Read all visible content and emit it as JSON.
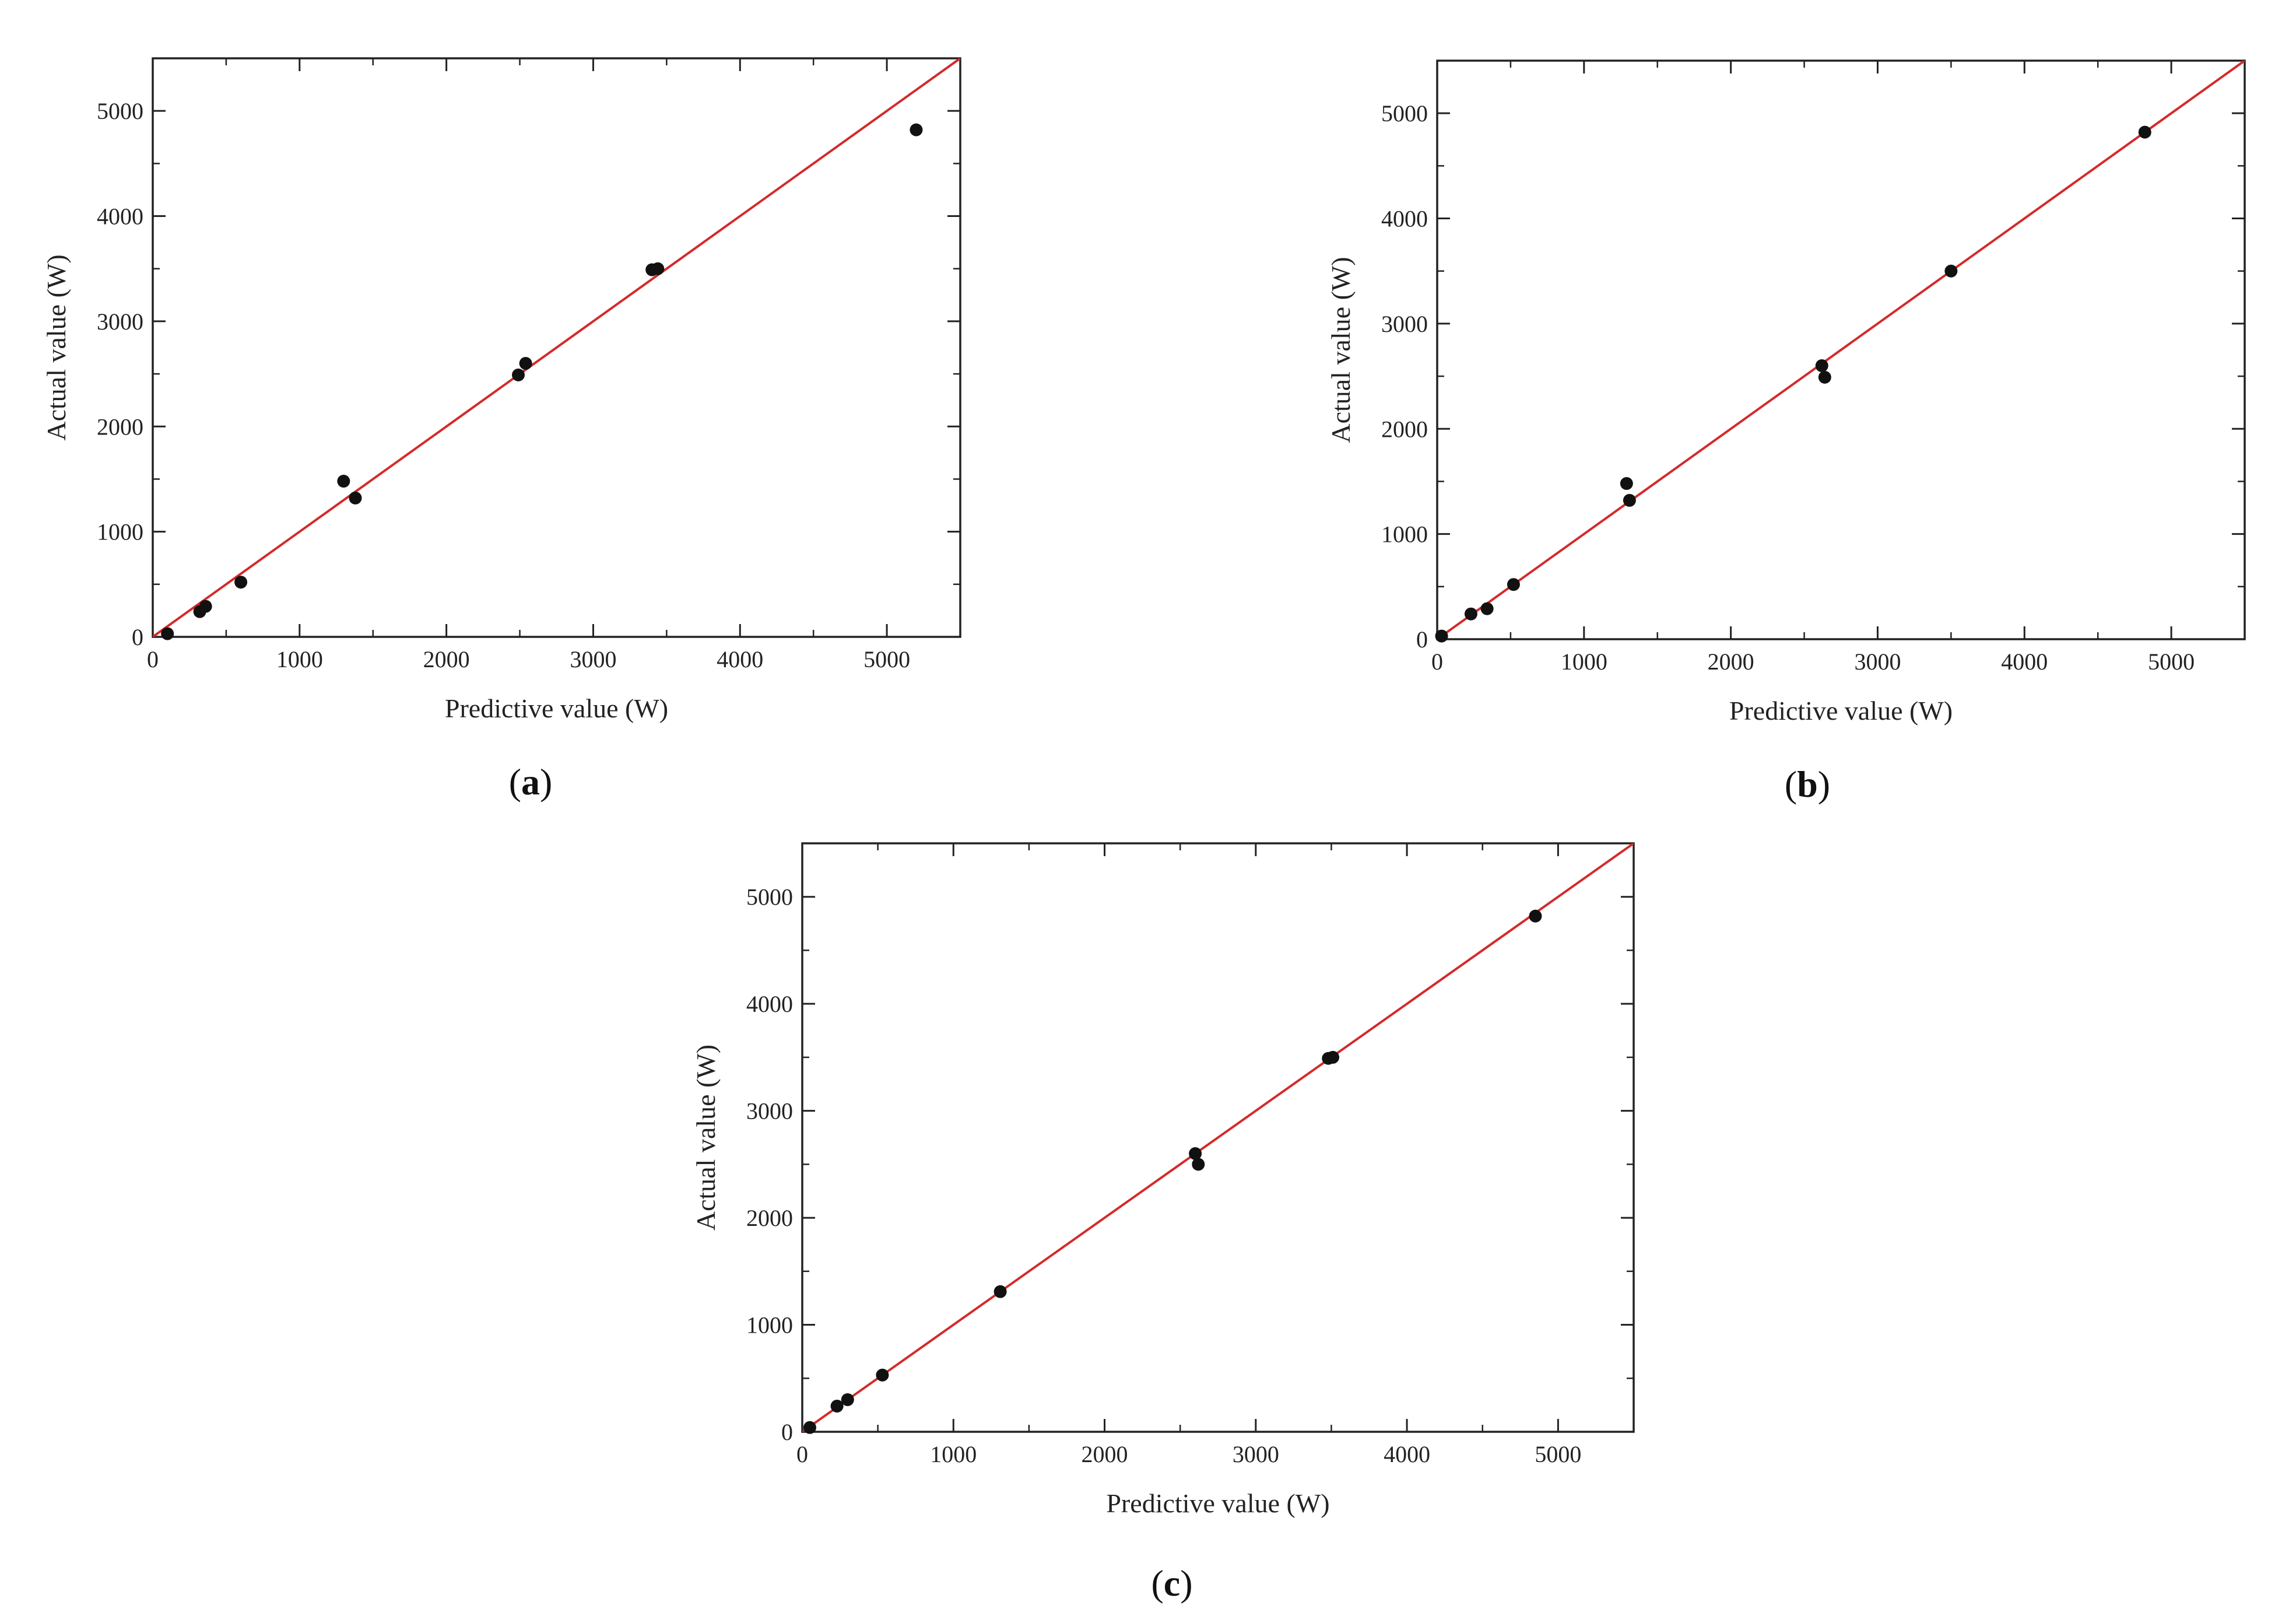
{
  "figure": {
    "panels": [
      {
        "id": "a",
        "label": "a"
      },
      {
        "id": "b",
        "label": "b"
      },
      {
        "id": "c",
        "label": "c"
      }
    ]
  },
  "colors": {
    "fit_line": "#d42a2a",
    "points": "#111111",
    "axes": "#222222"
  },
  "chart_data": [
    {
      "type": "scatter",
      "panel_label": "a",
      "title": "",
      "xlabel": "Predictive value (W)",
      "ylabel": "Actual value (W)",
      "xlim": [
        0,
        5500
      ],
      "ylim": [
        0,
        5500
      ],
      "xticks": [
        0,
        1000,
        2000,
        3000,
        4000,
        5000
      ],
      "yticks": [
        0,
        1000,
        2000,
        3000,
        4000,
        5000
      ],
      "grid": false,
      "reference_line": {
        "from": [
          0,
          0
        ],
        "to": [
          5500,
          5500
        ]
      },
      "series": [
        {
          "x": [
            100,
            320,
            360,
            600,
            1300,
            1380,
            2490,
            2540,
            3400,
            3440,
            5200
          ],
          "y": [
            30,
            240,
            290,
            520,
            1480,
            1320,
            2490,
            2600,
            3490,
            3500,
            4820
          ]
        }
      ]
    },
    {
      "type": "scatter",
      "panel_label": "b",
      "title": "",
      "xlabel": "Predictive value (W)",
      "ylabel": "Actual value (W)",
      "xlim": [
        0,
        5500
      ],
      "ylim": [
        0,
        5500
      ],
      "xticks": [
        0,
        1000,
        2000,
        3000,
        4000,
        5000
      ],
      "yticks": [
        0,
        1000,
        2000,
        3000,
        4000,
        5000
      ],
      "grid": false,
      "reference_line": {
        "from": [
          0,
          0
        ],
        "to": [
          5500,
          5500
        ]
      },
      "series": [
        {
          "x": [
            30,
            230,
            340,
            520,
            1290,
            1310,
            2620,
            2640,
            3500,
            4820
          ],
          "y": [
            30,
            240,
            290,
            520,
            1480,
            1320,
            2600,
            2490,
            3500,
            4820
          ]
        }
      ]
    },
    {
      "type": "scatter",
      "panel_label": "c",
      "title": "",
      "xlabel": "Predictive value (W)",
      "ylabel": "Actual value (W)",
      "xlim": [
        0,
        5500
      ],
      "ylim": [
        0,
        5500
      ],
      "xticks": [
        0,
        1000,
        2000,
        3000,
        4000,
        5000
      ],
      "yticks": [
        0,
        1000,
        2000,
        3000,
        4000,
        5000
      ],
      "grid": false,
      "reference_line": {
        "from": [
          0,
          0
        ],
        "to": [
          5500,
          5500
        ]
      },
      "series": [
        {
          "x": [
            50,
            230,
            300,
            530,
            1310,
            2600,
            2620,
            3480,
            3510,
            4850
          ],
          "y": [
            40,
            240,
            300,
            530,
            1310,
            2600,
            2500,
            3490,
            3500,
            4820
          ]
        }
      ]
    }
  ]
}
